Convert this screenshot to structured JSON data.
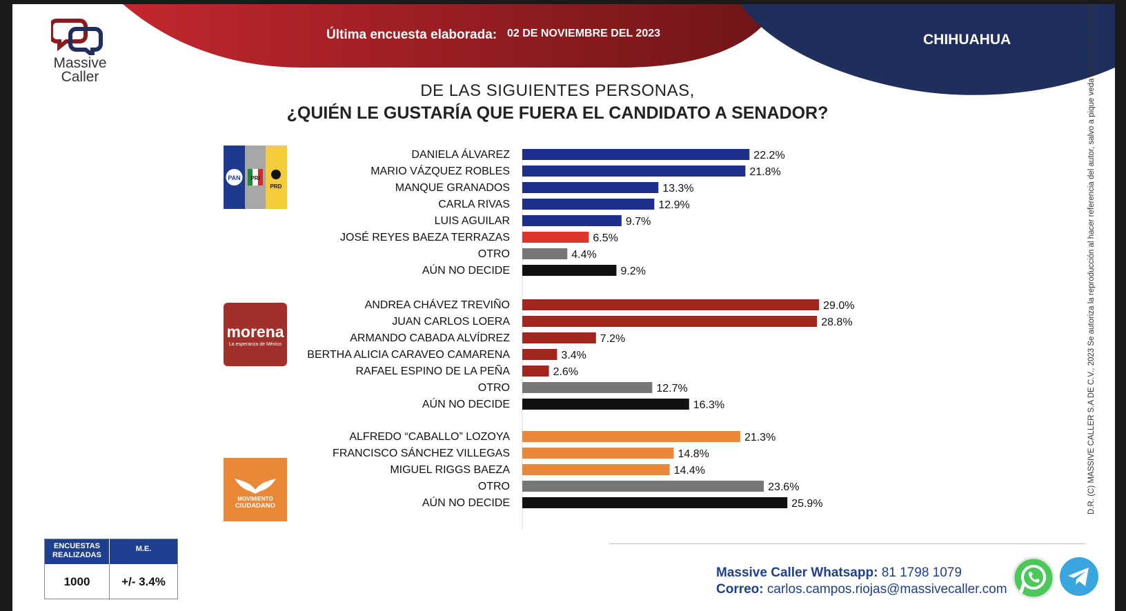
{
  "brand": {
    "name_line1": "Massive",
    "name_line2": "Caller"
  },
  "header": {
    "survey_label": "Última encuesta elaborada:",
    "survey_date": "02 DE NOVIEMBRE DEL 2023",
    "region": "CHIHUAHUA"
  },
  "question": {
    "line1": "DE LAS SIGUIENTES PERSONAS,",
    "line2": "¿QUIÉN LE GUSTARÍA QUE FUERA EL CANDIDATO A SENADOR?"
  },
  "party_logos": {
    "coalition": {
      "pan": "PAN",
      "pri": "PRI",
      "prd": "PRD"
    },
    "morena": {
      "name": "morena",
      "tagline": "La esperanza de México"
    },
    "mc": {
      "line1": "MOVIMIENTO",
      "line2": "CIUDADANO"
    }
  },
  "colors": {
    "coalition_blue": "#1e2f8a",
    "coalition_red": "#e0352b",
    "morena_red": "#a3251e",
    "mc_orange": "#e8873a",
    "otro_gray": "#777777",
    "undecided_black": "#111111",
    "header_red": "#9c1f24",
    "header_navy": "#1f2e5c"
  },
  "chart_data": {
    "type": "bar",
    "orientation": "horizontal",
    "xlim": [
      0,
      30
    ],
    "groups": [
      {
        "party": "PAN-PRI-PRD",
        "categories": [
          "DANIELA ÁLVAREZ",
          "MARIO VÁZQUEZ ROBLES",
          "MANQUE GRANADOS",
          "CARLA RIVAS",
          "LUIS AGUILAR",
          "JOSÉ REYES BAEZA TERRAZAS",
          "OTRO",
          "AÚN NO DECIDE"
        ],
        "values": [
          22.2,
          21.8,
          13.3,
          12.9,
          9.7,
          6.5,
          4.4,
          9.2
        ],
        "labels": [
          "22.2%",
          "21.8%",
          "13.3%",
          "12.9%",
          "9.7%",
          "6.5%",
          "4.4%",
          "9.2%"
        ],
        "colors": [
          "#1e2f8a",
          "#1e2f8a",
          "#1e2f8a",
          "#1e2f8a",
          "#1e2f8a",
          "#e0352b",
          "#777777",
          "#111111"
        ]
      },
      {
        "party": "MORENA",
        "categories": [
          "ANDREA CHÁVEZ TREVIÑO",
          "JUAN CARLOS LOERA",
          "ARMANDO CABADA ALVÍDREZ",
          "BERTHA ALICIA CARAVEO CAMARENA",
          "RAFAEL ESPINO DE LA PEÑA",
          "OTRO",
          "AÚN NO DECIDE"
        ],
        "values": [
          29.0,
          28.8,
          7.2,
          3.4,
          2.6,
          12.7,
          16.3
        ],
        "labels": [
          "29.0%",
          "28.8%",
          "7.2%",
          "3.4%",
          "2.6%",
          "12.7%",
          "16.3%"
        ],
        "colors": [
          "#a3251e",
          "#a3251e",
          "#a3251e",
          "#a3251e",
          "#a3251e",
          "#777777",
          "#111111"
        ]
      },
      {
        "party": "MOVIMIENTO CIUDADANO",
        "categories": [
          "ALFREDO “CABALLO” LOZOYA",
          "FRANCISCO SÁNCHEZ VILLEGAS",
          "MIGUEL RIGGS BAEZA",
          "OTRO",
          "AÚN NO DECIDE"
        ],
        "values": [
          21.3,
          14.8,
          14.4,
          23.6,
          25.9
        ],
        "labels": [
          "21.3%",
          "14.8%",
          "14.4%",
          "23.6%",
          "25.9%"
        ],
        "colors": [
          "#e8873a",
          "#e8873a",
          "#e8873a",
          "#777777",
          "#111111"
        ]
      }
    ]
  },
  "legal": "D.R. (C) MASSIVE CALLER S.A DE C.V., 2023 Se autoriza la reproducción al hacer referencia del autor, salvo a pique veda electoral al contenido.",
  "sample_box": {
    "head_surveys": "ENCUESTAS REALIZADAS",
    "head_me": "M.E.",
    "surveys": "1000",
    "me": "+/- 3.4%"
  },
  "footer": {
    "whatsapp_label": "Massive Caller Whatsapp:",
    "whatsapp_number": "81 1798 1079",
    "email_label": "Correo:",
    "email": "carlos.campos.riojas@massivecaller.com"
  }
}
